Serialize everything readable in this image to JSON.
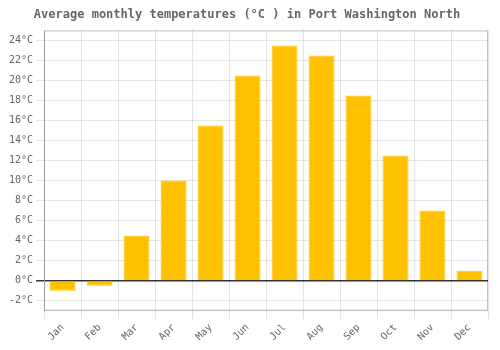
{
  "chart_data": {
    "type": "bar",
    "title": "Average monthly temperatures (°C ) in Port Washington North",
    "categories": [
      "Jan",
      "Feb",
      "Mar",
      "Apr",
      "May",
      "Jun",
      "Jul",
      "Aug",
      "Sep",
      "Oct",
      "Nov",
      "Dec"
    ],
    "values": [
      -1.0,
      -0.5,
      4.5,
      10.0,
      15.5,
      20.5,
      23.5,
      22.5,
      18.5,
      12.5,
      7.0,
      1.0
    ],
    "color": "#FFC200",
    "ylim": [
      -3,
      25
    ],
    "yticks": [
      {
        "value": -2,
        "label": "-2°C"
      },
      {
        "value": 0,
        "label": "0°C"
      },
      {
        "value": 2,
        "label": "2°C"
      },
      {
        "value": 4,
        "label": "4°C"
      },
      {
        "value": 6,
        "label": "6°C"
      },
      {
        "value": 8,
        "label": "8°C"
      },
      {
        "value": 10,
        "label": "10°C"
      },
      {
        "value": 12,
        "label": "12°C"
      },
      {
        "value": 14,
        "label": "14°C"
      },
      {
        "value": 16,
        "label": "16°C"
      },
      {
        "value": 18,
        "label": "18°C"
      },
      {
        "value": 20,
        "label": "20°C"
      },
      {
        "value": 22,
        "label": "22°C"
      },
      {
        "value": 24,
        "label": "24°C"
      }
    ],
    "grid": true
  }
}
